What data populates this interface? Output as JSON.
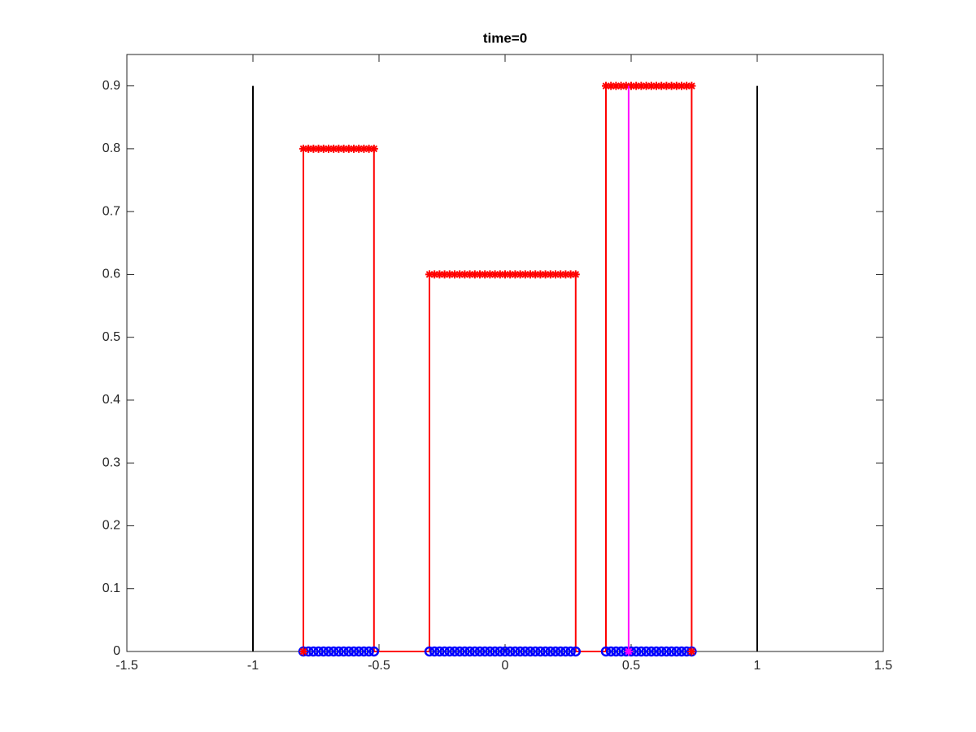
{
  "chart_data": {
    "type": "line",
    "title": "time=0",
    "xlim": [
      -1.5,
      1.5
    ],
    "xticks": [
      -1.5,
      -1,
      -0.5,
      0,
      0.5,
      1,
      1.5
    ],
    "ylim": [
      0,
      0.95
    ],
    "yticks": [
      0,
      0.1,
      0.2,
      0.3,
      0.4,
      0.5,
      0.6,
      0.7,
      0.8,
      0.9
    ],
    "grid": false,
    "box": true,
    "series": [
      {
        "color": "#ff0000",
        "line": true,
        "marker": "none",
        "x": [
          -0.8,
          -0.8,
          -0.52,
          -0.52,
          -0.3,
          -0.3,
          0.28,
          0.28,
          0.4,
          0.4,
          0.74,
          0.74
        ],
        "values": [
          0,
          0.8,
          0.8,
          0,
          0,
          0.6,
          0.6,
          0,
          0,
          0.9,
          0.9,
          0
        ]
      },
      {
        "color": "#ff0000",
        "line": false,
        "marker": "star",
        "x": [
          -0.8,
          -0.78,
          -0.76,
          -0.74,
          -0.72,
          -0.7,
          -0.68,
          -0.66,
          -0.64,
          -0.62,
          -0.6,
          -0.58,
          -0.56,
          -0.54,
          -0.52,
          -0.3,
          -0.28,
          -0.26,
          -0.24,
          -0.22,
          -0.2,
          -0.18,
          -0.16,
          -0.14,
          -0.12,
          -0.1,
          -0.08,
          -0.06,
          -0.04,
          -0.02,
          0,
          0.02,
          0.04,
          0.06,
          0.08,
          0.1,
          0.12,
          0.14,
          0.16,
          0.18,
          0.2,
          0.22,
          0.24,
          0.26,
          0.28,
          0.4,
          0.42,
          0.44,
          0.46,
          0.48,
          0.5,
          0.52,
          0.54,
          0.56,
          0.58,
          0.6,
          0.62,
          0.64,
          0.66,
          0.68,
          0.7,
          0.72,
          0.74
        ],
        "values": [
          0.8,
          0.8,
          0.8,
          0.8,
          0.8,
          0.8,
          0.8,
          0.8,
          0.8,
          0.8,
          0.8,
          0.8,
          0.8,
          0.8,
          0.8,
          0.6,
          0.6,
          0.6,
          0.6,
          0.6,
          0.6,
          0.6,
          0.6,
          0.6,
          0.6,
          0.6,
          0.6,
          0.6,
          0.6,
          0.6,
          0.6,
          0.6,
          0.6,
          0.6,
          0.6,
          0.6,
          0.6,
          0.6,
          0.6,
          0.6,
          0.6,
          0.6,
          0.6,
          0.6,
          0.6,
          0.9,
          0.9,
          0.9,
          0.9,
          0.9,
          0.9,
          0.9,
          0.9,
          0.9,
          0.9,
          0.9,
          0.9,
          0.9,
          0.9,
          0.9,
          0.9,
          0.9,
          0.9
        ]
      },
      {
        "color": "#0000ff",
        "line": false,
        "marker": "circle",
        "x": [
          -0.8,
          -0.78,
          -0.76,
          -0.74,
          -0.72,
          -0.7,
          -0.68,
          -0.66,
          -0.64,
          -0.62,
          -0.6,
          -0.58,
          -0.56,
          -0.54,
          -0.52,
          -0.3,
          -0.28,
          -0.26,
          -0.24,
          -0.22,
          -0.2,
          -0.18,
          -0.16,
          -0.14,
          -0.12,
          -0.1,
          -0.08,
          -0.06,
          -0.04,
          -0.02,
          0,
          0.02,
          0.04,
          0.06,
          0.08,
          0.1,
          0.12,
          0.14,
          0.16,
          0.18,
          0.2,
          0.22,
          0.24,
          0.26,
          0.28,
          0.4,
          0.42,
          0.44,
          0.46,
          0.48,
          0.5,
          0.52,
          0.54,
          0.56,
          0.58,
          0.6,
          0.62,
          0.64,
          0.66,
          0.68,
          0.7,
          0.72,
          0.74
        ],
        "values": [
          0,
          0,
          0,
          0,
          0,
          0,
          0,
          0,
          0,
          0,
          0,
          0,
          0,
          0,
          0,
          0,
          0,
          0,
          0,
          0,
          0,
          0,
          0,
          0,
          0,
          0,
          0,
          0,
          0,
          0,
          0,
          0,
          0,
          0,
          0,
          0,
          0,
          0,
          0,
          0,
          0,
          0,
          0,
          0,
          0,
          0,
          0,
          0,
          0,
          0,
          0,
          0,
          0,
          0,
          0,
          0,
          0,
          0,
          0,
          0,
          0,
          0,
          0
        ]
      },
      {
        "color": "#ff0000",
        "line": false,
        "marker": "star",
        "x": [
          -0.8,
          0.74
        ],
        "values": [
          0,
          0
        ]
      },
      {
        "color": "#ff00ff",
        "line": true,
        "marker": "none",
        "x": [
          0.49,
          0.49
        ],
        "values": [
          0,
          0.9
        ]
      },
      {
        "color": "#ff00ff",
        "line": false,
        "marker": "star",
        "x": [
          0.49
        ],
        "values": [
          0
        ]
      },
      {
        "color": "#000000",
        "line": true,
        "marker": "none",
        "x": [
          -1,
          -1
        ],
        "values": [
          0,
          0.9
        ]
      },
      {
        "color": "#000000",
        "line": true,
        "marker": "none",
        "x": [
          1,
          1
        ],
        "values": [
          0,
          0.9
        ]
      }
    ]
  }
}
